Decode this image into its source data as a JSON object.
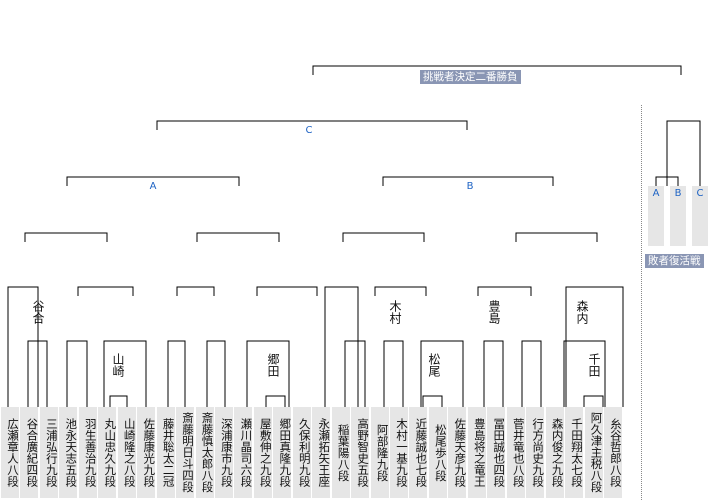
{
  "final_label": "挑戦者決定二番勝負",
  "losers_label": "敗者復活戦",
  "blocks": [
    "A",
    "B",
    "C"
  ],
  "revival_slots": [
    "A",
    "B",
    "C"
  ],
  "players": [
    "広瀬章人八段",
    "谷合廣紀四段",
    "三浦弘行九段",
    "池永天志五段",
    "羽生善治九段",
    "丸山忠久九段",
    "山崎隆之八段",
    "佐藤康光九段",
    "藤井聡太二冠",
    "斎藤明日斗四段",
    "斎藤慎太郎八段",
    "深浦康市九段",
    "瀬川晶司六段",
    "屋敷伸之九段",
    "郷田真隆九段",
    "久保利明九段",
    "永瀬拓矢王座",
    "稲葉陽八段",
    "高野智史五段",
    "阿部隆九段",
    "木村一基九段",
    "近藤誠也七段",
    "松尾歩八段",
    "佐藤天彦九段",
    "豊島将之竜王",
    "冨田誠也四段",
    "菅井竜也八段",
    "行方尚史九段",
    "森内俊之九段",
    "千田翔太七段",
    "阿久津主税八段",
    "糸谷哲郎八段"
  ],
  "match_winners": [
    "谷合",
    "山崎",
    "郷田",
    "木村",
    "松尾",
    "豊島",
    "森内",
    "千田"
  ]
}
